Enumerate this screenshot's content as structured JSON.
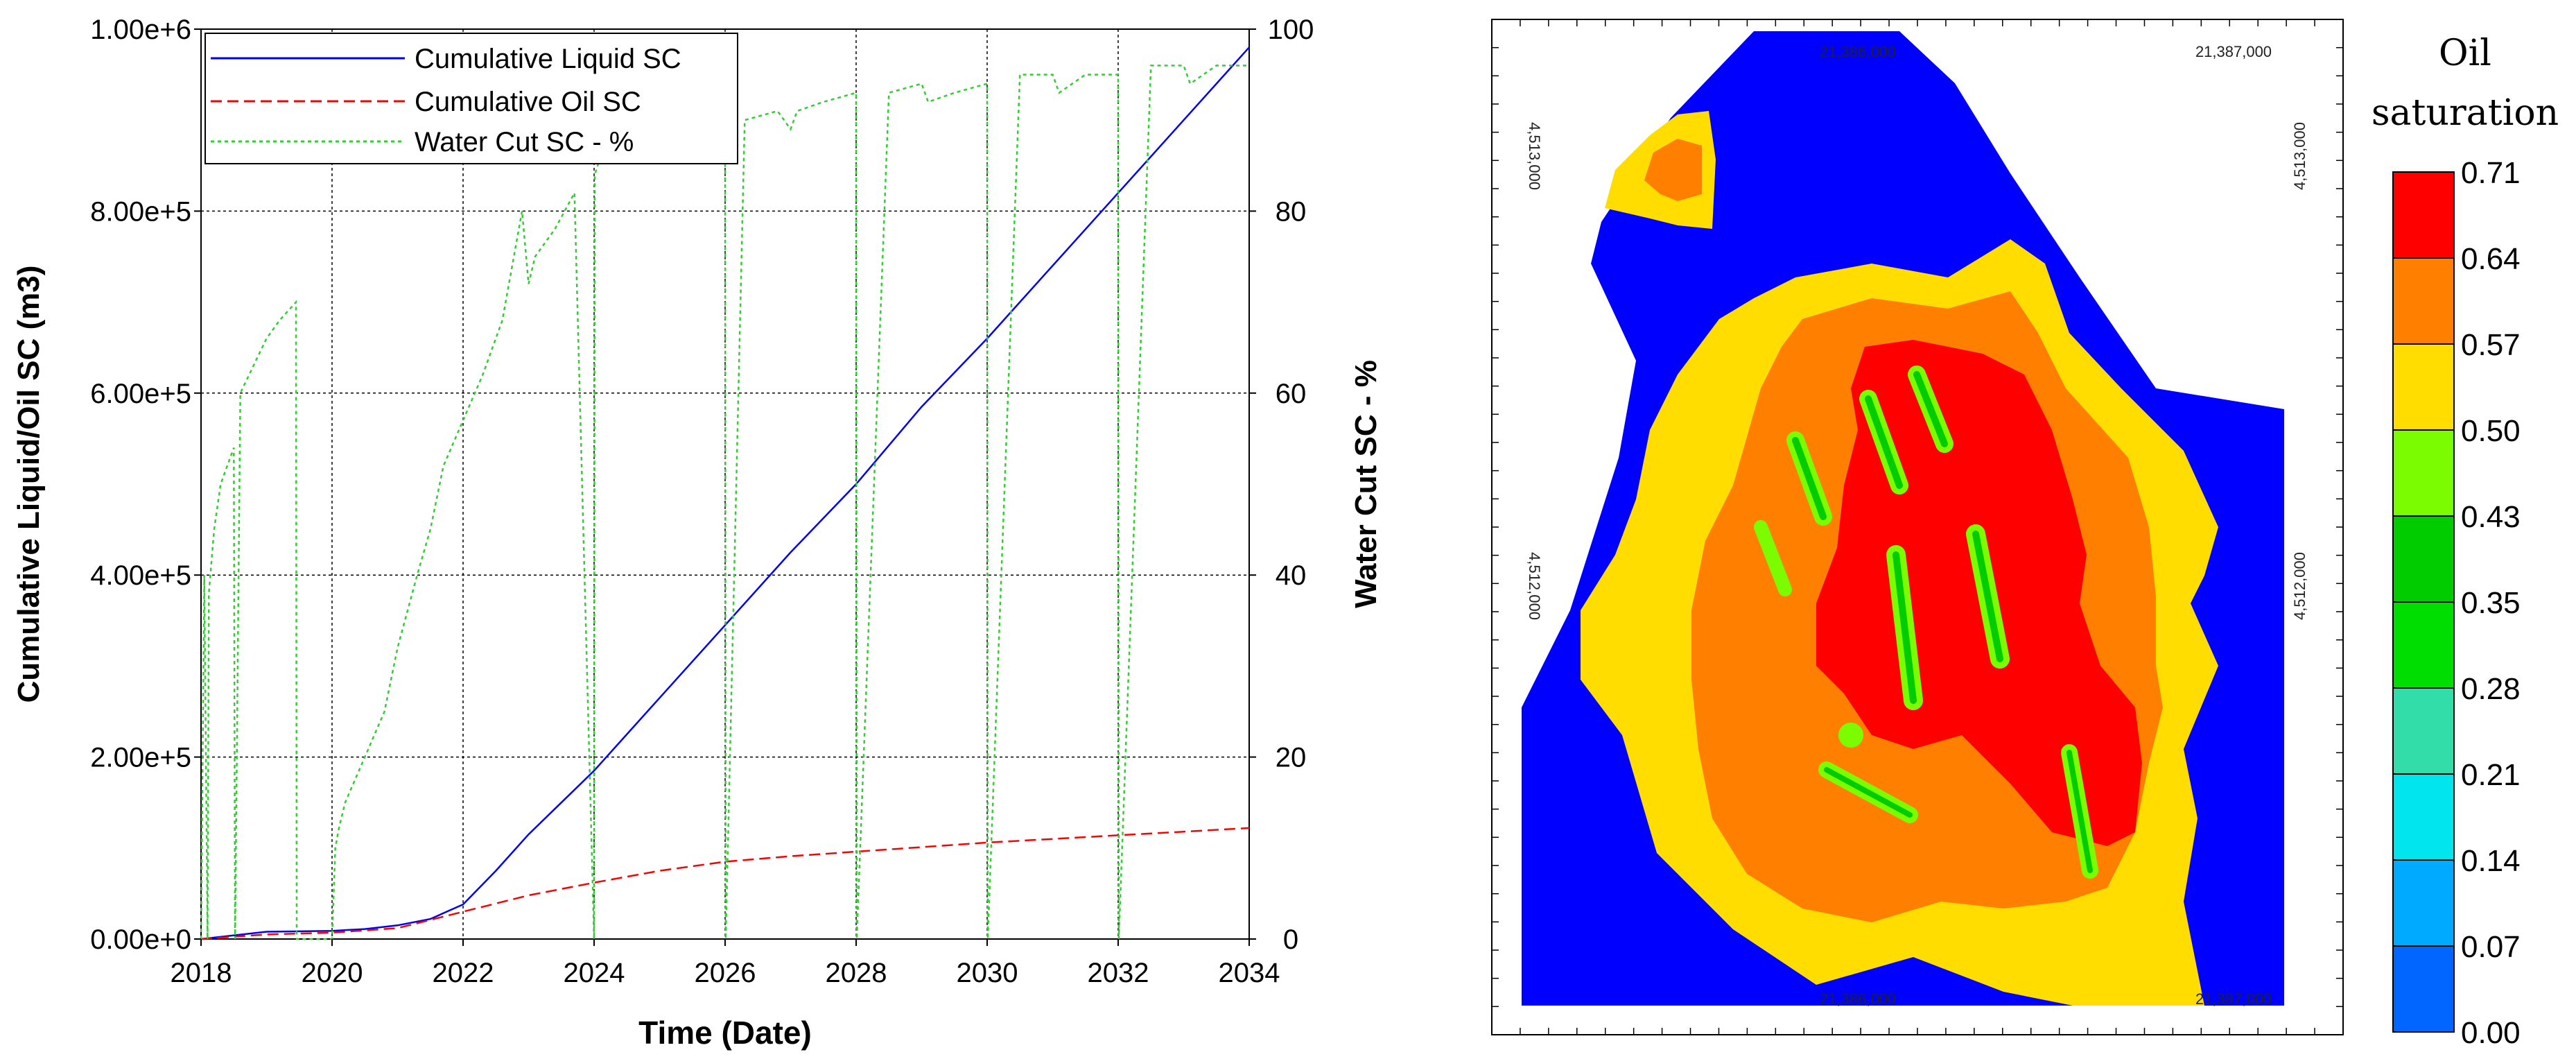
{
  "chart_data": [
    {
      "type": "line",
      "xlabel": "Time (Date)",
      "ylabel": "Cumulative Liquid/Oil SC (m3)",
      "y2label": "Water Cut SC - %",
      "xlim": [
        2018,
        2034
      ],
      "ylim": [
        0,
        1000000
      ],
      "y2lim": [
        0,
        100
      ],
      "grid": true,
      "legend_position": "top-left",
      "x_ticks": [
        "2018",
        "2020",
        "2022",
        "2024",
        "2026",
        "2028",
        "2030",
        "2032",
        "2034"
      ],
      "y_ticks": [
        "0.00e+0",
        "2.00e+5",
        "4.00e+5",
        "6.00e+5",
        "8.00e+5",
        "1.00e+6"
      ],
      "y2_ticks": [
        "0",
        "20",
        "40",
        "60",
        "80",
        "100"
      ],
      "series": [
        {
          "name": "Cumulative Liquid SC",
          "axis": "left",
          "color": "#0000ff",
          "style": "solid",
          "x": [
            2018,
            2019,
            2020,
            2020.5,
            2021,
            2021.5,
            2022,
            2022.5,
            2023,
            2023.5,
            2024,
            2025,
            2026,
            2027,
            2028,
            2029,
            2030,
            2031,
            2032,
            2033,
            2034
          ],
          "values": [
            0,
            8000,
            9000,
            11000,
            15000,
            22000,
            38000,
            75000,
            115000,
            150000,
            185000,
            265000,
            345000,
            425000,
            500000,
            585000,
            660000,
            740000,
            820000,
            900000,
            980000
          ]
        },
        {
          "name": "Cumulative Oil SC",
          "axis": "left",
          "color": "#ff0000",
          "style": "dashed",
          "x": [
            2018,
            2019,
            2020,
            2021,
            2022,
            2023,
            2024,
            2025,
            2026,
            2027,
            2028,
            2029,
            2030,
            2031,
            2032,
            2033,
            2034
          ],
          "values": [
            0,
            5000,
            7000,
            12000,
            30000,
            48000,
            62000,
            75000,
            85000,
            91000,
            96000,
            101000,
            106000,
            110000,
            114000,
            118000,
            122000
          ]
        },
        {
          "name": "Water Cut SC - %",
          "axis": "right",
          "color": "#33cc33",
          "style": "dotted",
          "x": [
            2018,
            2018.05,
            2018.1,
            2018.12,
            2018.2,
            2018.3,
            2018.4,
            2018.5,
            2018.52,
            2018.6,
            2018.8,
            2019.0,
            2019.2,
            2019.45,
            2019.46,
            2020.0,
            2020.05,
            2020.1,
            2020.2,
            2020.5,
            2020.8,
            2021.0,
            2021.3,
            2021.5,
            2021.7,
            2022.0,
            2022.3,
            2022.6,
            2022.9,
            2023.0,
            2023.1,
            2023.4,
            2023.7,
            2024.0,
            2024.01,
            2024.1,
            2024.3,
            2024.7,
            2025.0,
            2025.5,
            2026.0,
            2026.01,
            2026.3,
            2026.8,
            2027.0,
            2027.1,
            2027.5,
            2028.0,
            2028.01,
            2028.5,
            2029.0,
            2029.1,
            2029.5,
            2030.0,
            2030.01,
            2030.5,
            2031.0,
            2031.1,
            2031.5,
            2032.0,
            2032.01,
            2032.5,
            2033.0,
            2033.1,
            2033.5,
            2034.0
          ],
          "values": [
            0,
            40,
            0,
            38,
            45,
            50,
            52,
            54,
            0,
            60,
            63,
            66,
            68,
            70,
            0,
            0,
            10,
            12,
            15,
            20,
            25,
            32,
            40,
            45,
            52,
            57,
            62,
            68,
            80,
            72,
            75,
            78,
            82,
            0,
            84,
            86,
            87,
            88,
            87,
            89,
            89,
            0,
            90,
            91,
            89,
            91,
            92,
            93,
            0,
            93,
            94,
            92,
            93,
            94,
            0,
            95,
            95,
            93,
            95,
            95,
            0,
            96,
            96,
            94,
            96,
            96
          ]
        }
      ]
    },
    {
      "type": "heatmap",
      "title": "Oil saturation",
      "colorbar_title_line1": "Oil",
      "colorbar_title_line2": "saturation",
      "colorbar_levels": [
        "0.71",
        "0.64",
        "0.57",
        "0.50",
        "0.43",
        "0.35",
        "0.28",
        "0.21",
        "0.14",
        "0.07",
        "0.00"
      ],
      "colorbar_colors": [
        "#ff0000",
        "#ff7f00",
        "#ffdd00",
        "#7cfc00",
        "#00cc00",
        "#00dd00",
        "#33ddaa",
        "#00e5ee",
        "#00aaff",
        "#0066ff",
        "#0000ff"
      ],
      "coords": {
        "top_left_x": "21,386,000",
        "top_right_x": "21,387,000",
        "bottom_left_x": "21,386,000",
        "bottom_right_x": "21,387,000",
        "left_upper_y": "4,513,000",
        "left_lower_y": "4,512,000",
        "right_upper_y": "4,513,000",
        "right_lower_y": "4,512,000"
      }
    }
  ]
}
